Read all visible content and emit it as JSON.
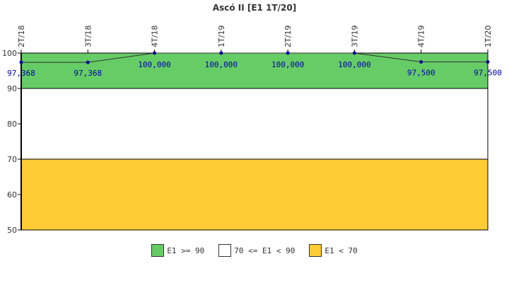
{
  "chart_data": {
    "type": "line",
    "title": "Ascó II [E1 1T/20]",
    "categories": [
      "2T/18",
      "3T/18",
      "4T/18",
      "1T/19",
      "2T/19",
      "3T/19",
      "4T/19",
      "1T/20"
    ],
    "values": [
      97.368,
      97.368,
      100.0,
      100.0,
      100.0,
      100.0,
      97.5,
      97.5
    ],
    "value_labels": [
      "97,368",
      "97,368",
      "100,000",
      "100,000",
      "100,000",
      "100,000",
      "97,500",
      "97,500"
    ],
    "ylim": [
      50,
      100
    ],
    "yticks": [
      "50",
      "60",
      "70",
      "80",
      "90",
      "100"
    ],
    "ytick_values": [
      50,
      60,
      70,
      80,
      90,
      100
    ],
    "bands": [
      {
        "label": "E1 >= 90",
        "from": 90,
        "to": 100,
        "color": "#66cc66"
      },
      {
        "label": "70 <= E1 < 90",
        "from": 70,
        "to": 90,
        "color": "#ffffff"
      },
      {
        "label": "E1 < 70",
        "from": 50,
        "to": 70,
        "color": "#ffcc33"
      }
    ],
    "line_color": "#333333",
    "marker_color": "#000099",
    "grid": false,
    "legend_position": "bottom"
  }
}
